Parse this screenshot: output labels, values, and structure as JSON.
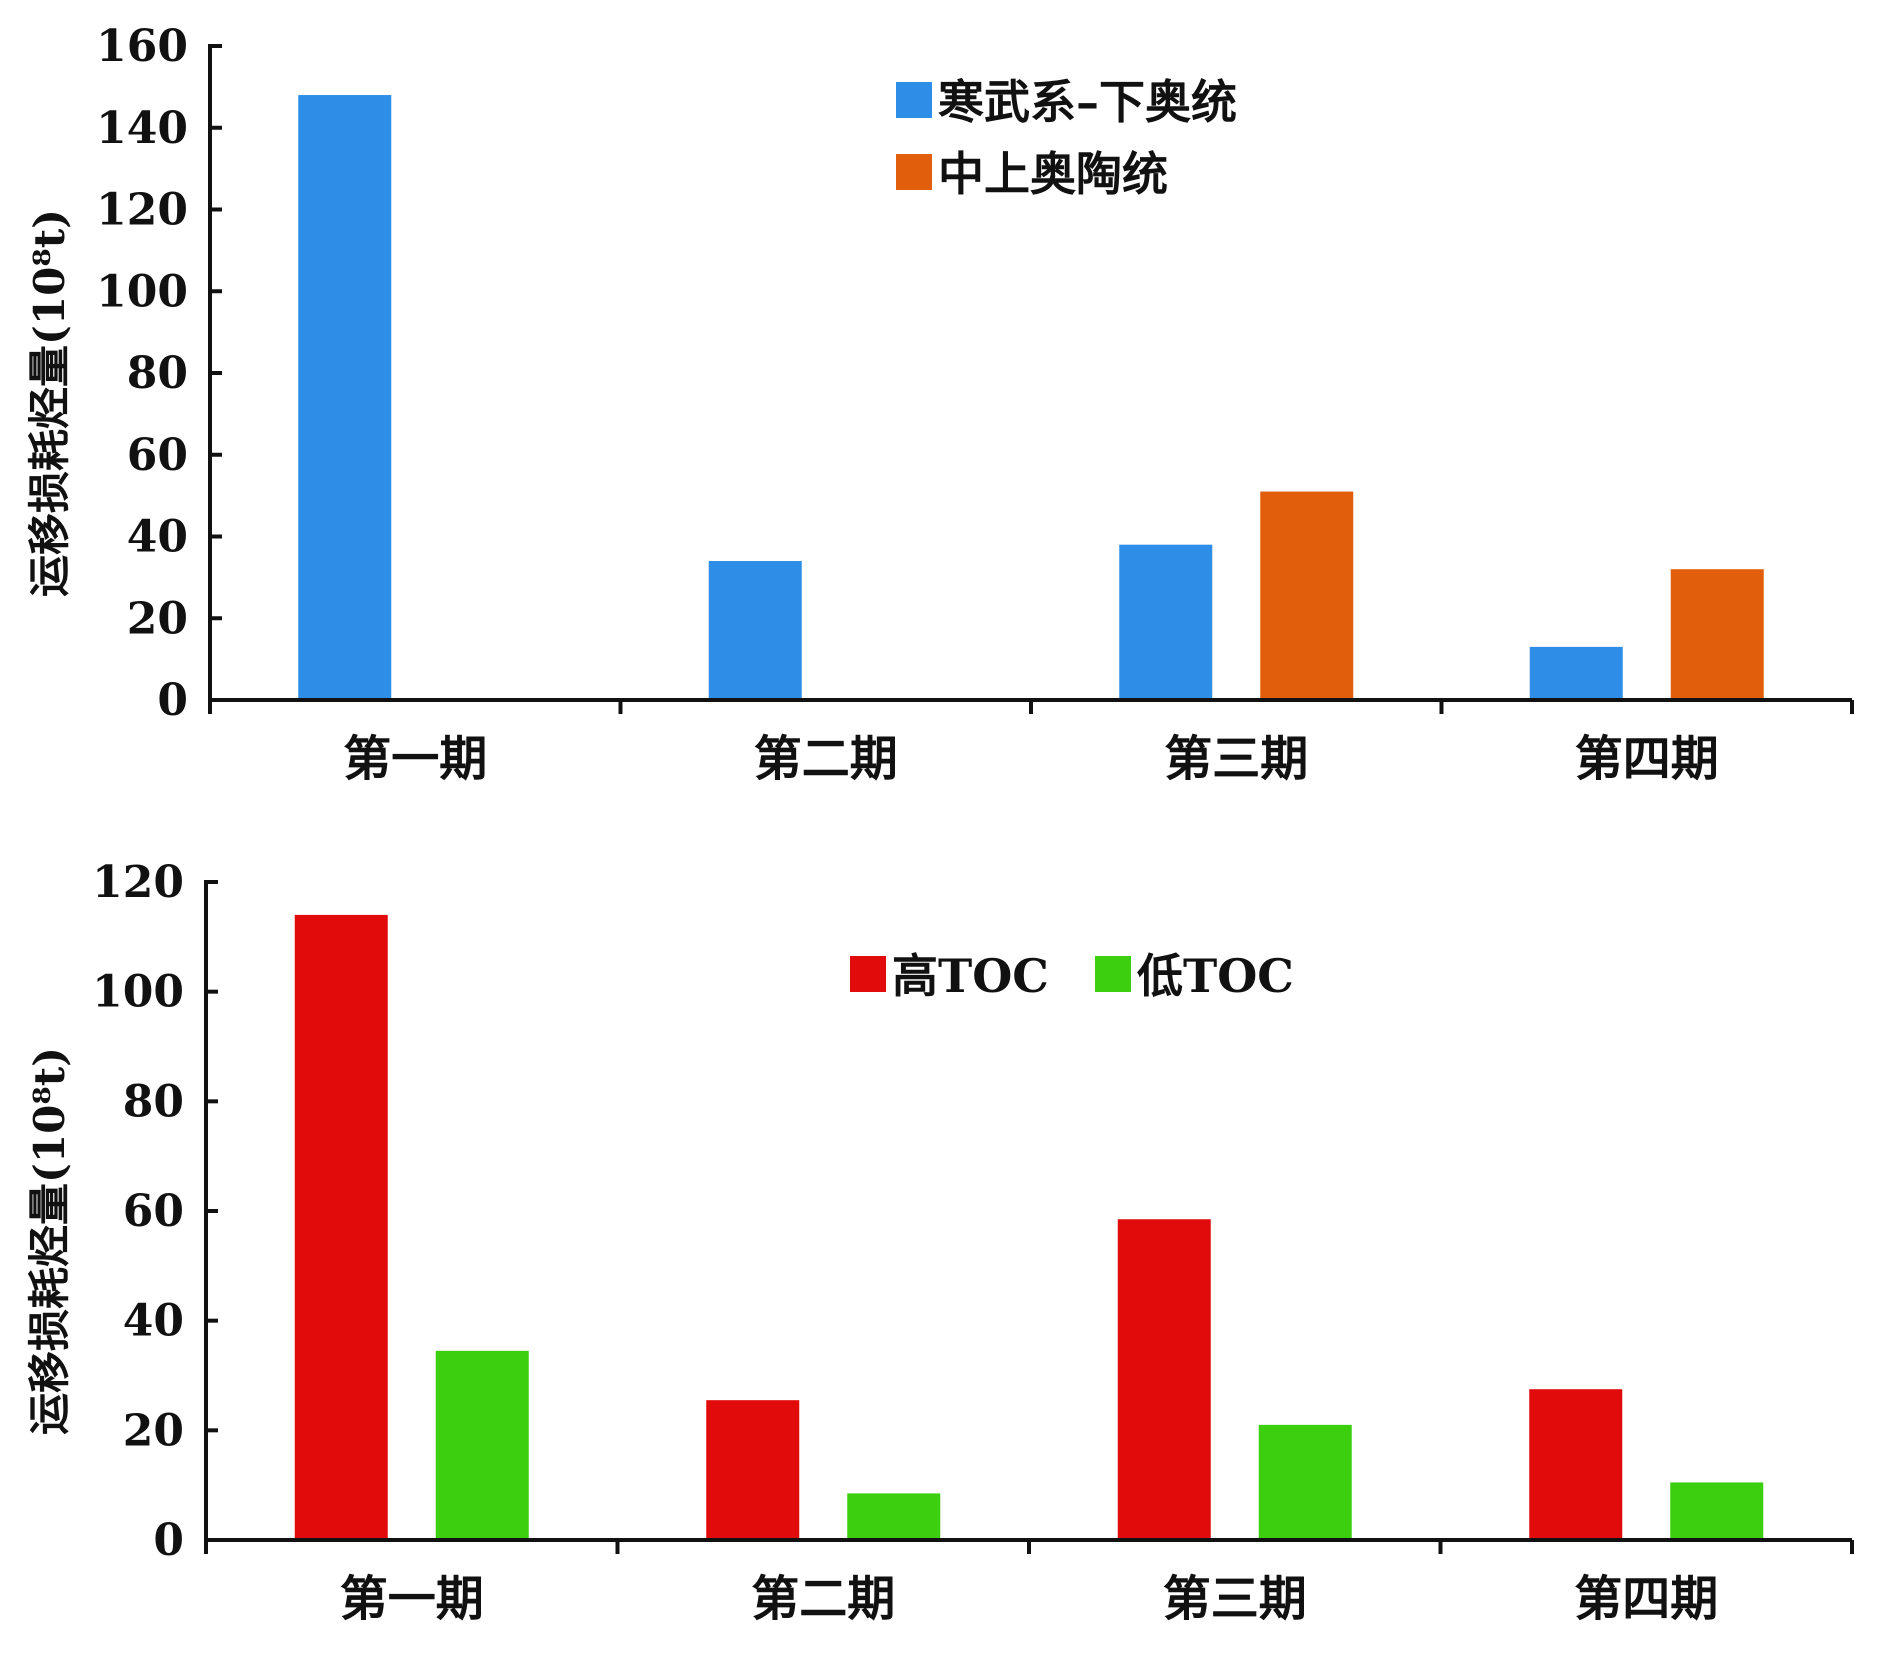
{
  "chart_data": [
    {
      "type": "bar",
      "categories": [
        "第一期",
        "第二期",
        "第三期",
        "第四期"
      ],
      "ylabel": "运移损耗烃量(10⁸t)",
      "ylim": [
        0,
        160
      ],
      "yticks": [
        0,
        20,
        40,
        60,
        80,
        100,
        120,
        140,
        160
      ],
      "legend_position": "top-center",
      "series": [
        {
          "name": "寒武系–下奥统",
          "color": "#2e8de6",
          "values": [
            148,
            34,
            38,
            13
          ]
        },
        {
          "name": "中上奥陶统",
          "color": "#e05e0c",
          "values": [
            null,
            null,
            51,
            32
          ]
        }
      ]
    },
    {
      "type": "bar",
      "categories": [
        "第一期",
        "第二期",
        "第三期",
        "第四期"
      ],
      "ylabel": "运移损耗烃量(10⁸t)",
      "ylim": [
        0,
        120
      ],
      "yticks": [
        0,
        20,
        40,
        60,
        80,
        100,
        120
      ],
      "legend_position": "top-center",
      "series": [
        {
          "name": "高TOC",
          "color": "#e20b0b",
          "values": [
            114,
            25.5,
            58.5,
            27.5
          ]
        },
        {
          "name": "低TOC",
          "color": "#3ccf10",
          "values": [
            34.5,
            8.5,
            21,
            10.5
          ]
        }
      ]
    }
  ]
}
